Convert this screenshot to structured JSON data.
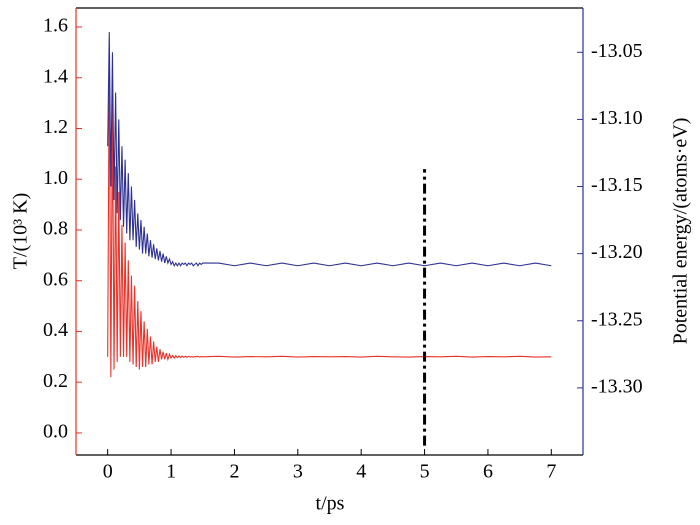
{
  "chart_data": {
    "type": "line",
    "xlabel": "t/ps",
    "ylabel": "T/(10³ K)",
    "y2label": "Potential energy/(atoms·eV)",
    "x": [
      0,
      0.025,
      0.05,
      0.075,
      0.1,
      0.125,
      0.15,
      0.175,
      0.2,
      0.225,
      0.25,
      0.275,
      0.3,
      0.325,
      0.35,
      0.375,
      0.4,
      0.425,
      0.45,
      0.475,
      0.5,
      0.525,
      0.55,
      0.575,
      0.6,
      0.625,
      0.65,
      0.675,
      0.7,
      0.725,
      0.75,
      0.775,
      0.8,
      0.825,
      0.85,
      0.875,
      0.9,
      0.925,
      0.95,
      0.975,
      1.0,
      1.025,
      1.05,
      1.075,
      1.1,
      1.125,
      1.15,
      1.175,
      1.2,
      1.225,
      1.25,
      1.275,
      1.3,
      1.325,
      1.35,
      1.375,
      1.4,
      1.425,
      1.45,
      1.475,
      1.5,
      1.75,
      2,
      2.25,
      2.5,
      2.75,
      3,
      3.25,
      3.5,
      3.75,
      4,
      4.25,
      4.5,
      4.75,
      5,
      5.25,
      5.5,
      5.75,
      6,
      6.25,
      6.5,
      6.75,
      7
    ],
    "series": [
      {
        "color": "#e8322a",
        "axis": "y",
        "values": [
          0.3,
          1.5,
          0.22,
          1.3,
          0.25,
          1.05,
          0.28,
          0.95,
          0.3,
          0.82,
          0.3,
          0.75,
          0.3,
          0.68,
          0.28,
          0.62,
          0.27,
          0.58,
          0.26,
          0.52,
          0.25,
          0.48,
          0.26,
          0.44,
          0.26,
          0.41,
          0.27,
          0.38,
          0.27,
          0.36,
          0.28,
          0.34,
          0.28,
          0.33,
          0.29,
          0.32,
          0.29,
          0.315,
          0.29,
          0.31,
          0.295,
          0.305,
          0.295,
          0.305,
          0.297,
          0.303,
          0.297,
          0.303,
          0.298,
          0.302,
          0.298,
          0.302,
          0.299,
          0.301,
          0.299,
          0.301,
          0.3,
          0.302,
          0.299,
          0.301,
          0.3,
          0.302,
          0.299,
          0.301,
          0.3,
          0.302,
          0.299,
          0.301,
          0.3,
          0.301,
          0.299,
          0.302,
          0.3,
          0.299,
          0.301,
          0.3,
          0.302,
          0.299,
          0.301,
          0.3,
          0.302,
          0.299,
          0.3
        ]
      },
      {
        "color": "#2e3192",
        "axis": "y2",
        "values": [
          -13.12,
          -13.035,
          -13.15,
          -13.05,
          -13.16,
          -13.08,
          -13.17,
          -13.1,
          -13.175,
          -13.12,
          -13.18,
          -13.13,
          -13.185,
          -13.14,
          -13.19,
          -13.15,
          -13.19,
          -13.16,
          -13.195,
          -13.17,
          -13.197,
          -13.175,
          -13.2,
          -13.18,
          -13.2,
          -13.185,
          -13.202,
          -13.19,
          -13.203,
          -13.193,
          -13.204,
          -13.196,
          -13.205,
          -13.198,
          -13.206,
          -13.2,
          -13.207,
          -13.202,
          -13.207,
          -13.204,
          -13.208,
          -13.206,
          -13.209,
          -13.207,
          -13.209,
          -13.207,
          -13.209,
          -13.207,
          -13.208,
          -13.207,
          -13.209,
          -13.207,
          -13.208,
          -13.207,
          -13.209,
          -13.208,
          -13.207,
          -13.209,
          -13.207,
          -13.208,
          -13.207,
          -13.207,
          -13.209,
          -13.207,
          -13.209,
          -13.207,
          -13.209,
          -13.207,
          -13.209,
          -13.207,
          -13.209,
          -13.207,
          -13.209,
          -13.207,
          -13.209,
          -13.207,
          -13.209,
          -13.207,
          -13.209,
          -13.207,
          -13.209,
          -13.207,
          -13.209
        ]
      }
    ],
    "vline": {
      "x": 5,
      "y": [
        -0.05,
        1.04
      ],
      "color": "#000000"
    },
    "xlim": [
      -0.5,
      7.5
    ],
    "xticks": [
      0,
      1,
      2,
      3,
      4,
      5,
      6,
      7
    ],
    "ylim": [
      -0.087,
      1.675
    ],
    "yticks": [
      {
        "value": 0,
        "label": "0.0"
      },
      {
        "value": 0.2,
        "label": "0.2"
      },
      {
        "value": 0.4,
        "label": "0.4"
      },
      {
        "value": 0.6,
        "label": "0.6"
      },
      {
        "value": 0.8,
        "label": "0.8"
      },
      {
        "value": 1,
        "label": "1.0"
      },
      {
        "value": 1.2,
        "label": "1.2"
      },
      {
        "value": 1.4,
        "label": "1.4"
      },
      {
        "value": 1.6,
        "label": "1.6"
      }
    ],
    "y2lim": [
      -13.35,
      -13.017
    ],
    "y2ticks": [
      -13.05,
      {
        "value": -13.1,
        "label": "-13.10"
      },
      -13.15,
      {
        "value": -13.2,
        "label": "-13.20"
      },
      -13.25,
      {
        "value": -13.3,
        "label": "-13.30"
      }
    ]
  }
}
